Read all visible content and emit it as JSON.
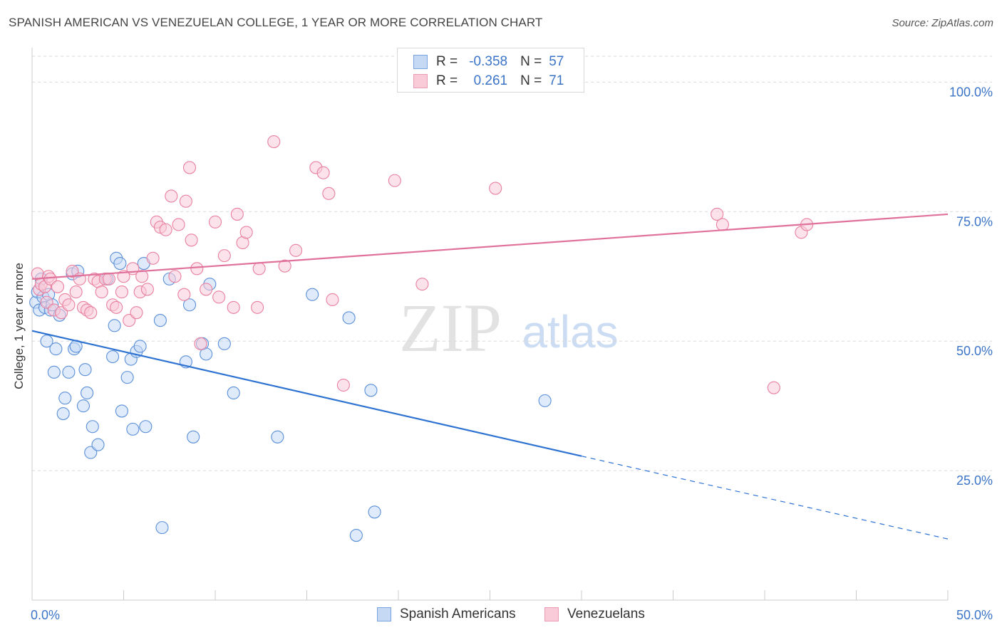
{
  "title": "SPANISH AMERICAN VS VENEZUELAN COLLEGE, 1 YEAR OR MORE CORRELATION CHART",
  "source": "Source: ZipAtlas.com",
  "watermark": {
    "zip": "ZIP",
    "atlas": "atlas"
  },
  "stats": [
    {
      "r_label": "R =",
      "r_value": "-0.358",
      "n_label": "N =",
      "n_value": "57",
      "fill": "#c5d9f5",
      "stroke": "#7aa3e0"
    },
    {
      "r_label": "R =",
      "r_value": "0.261",
      "n_label": "N =",
      "n_value": "71",
      "fill": "#f9cad8",
      "stroke": "#ec9bb4"
    }
  ],
  "legend": [
    {
      "label": "Spanish Americans",
      "fill": "#c5d9f5",
      "stroke": "#7aa3e0"
    },
    {
      "label": "Venezuelans",
      "fill": "#f9cad8",
      "stroke": "#ec9bb4"
    }
  ],
  "chart_data": {
    "type": "scatter",
    "ylabel": "College, 1 year or more",
    "xlim": [
      0,
      50
    ],
    "ylim": [
      0,
      105
    ],
    "x_tick_labels": [
      {
        "value": 0,
        "label": "0.0%"
      },
      {
        "value": 50,
        "label": "50.0%"
      }
    ],
    "y_tick_labels": [
      {
        "value": 100,
        "label": "100.0%"
      },
      {
        "value": 75,
        "label": "75.0%"
      },
      {
        "value": 50,
        "label": "50.0%"
      },
      {
        "value": 25,
        "label": "25.0%"
      }
    ],
    "grid": "horizontal dashed",
    "series": [
      {
        "name": "Spanish Americans",
        "color": "#5a8fd8",
        "fill": "#c5d9f5",
        "line_color": "#2e72d2",
        "trend": {
          "x0": 0,
          "y0": 52.0,
          "x1": 30,
          "y1": 27.8,
          "dash_to_x": 50,
          "dash_to_y": 11.8
        },
        "points": [
          [
            0.2,
            57.5
          ],
          [
            0.3,
            59.5
          ],
          [
            0.4,
            56.0
          ],
          [
            0.5,
            62.0
          ],
          [
            0.6,
            58.5
          ],
          [
            0.7,
            56.5
          ],
          [
            0.8,
            50.0
          ],
          [
            0.9,
            59.0
          ],
          [
            1.0,
            56.0
          ],
          [
            1.2,
            44.0
          ],
          [
            1.3,
            48.5
          ],
          [
            1.5,
            55.0
          ],
          [
            1.7,
            36.0
          ],
          [
            1.8,
            39.0
          ],
          [
            2.0,
            44.0
          ],
          [
            2.2,
            63.0
          ],
          [
            2.3,
            48.5
          ],
          [
            2.4,
            49.0
          ],
          [
            2.8,
            37.5
          ],
          [
            2.9,
            44.5
          ],
          [
            3.0,
            40.0
          ],
          [
            3.2,
            28.5
          ],
          [
            3.3,
            33.5
          ],
          [
            3.6,
            30.0
          ],
          [
            4.1,
            62.0
          ],
          [
            4.4,
            47.0
          ],
          [
            4.5,
            53.0
          ],
          [
            4.6,
            66.0
          ],
          [
            4.8,
            65.0
          ],
          [
            4.9,
            36.5
          ],
          [
            5.2,
            43.0
          ],
          [
            5.4,
            46.5
          ],
          [
            5.5,
            33.0
          ],
          [
            5.7,
            48.0
          ],
          [
            5.9,
            49.0
          ],
          [
            6.1,
            65.0
          ],
          [
            6.2,
            33.5
          ],
          [
            7.0,
            54.0
          ],
          [
            7.1,
            14.0
          ],
          [
            7.5,
            62.0
          ],
          [
            8.4,
            46.0
          ],
          [
            8.6,
            57.0
          ],
          [
            8.8,
            31.5
          ],
          [
            9.3,
            49.5
          ],
          [
            9.5,
            47.5
          ],
          [
            9.7,
            61.0
          ],
          [
            10.5,
            49.5
          ],
          [
            11.0,
            40.0
          ],
          [
            13.4,
            31.5
          ],
          [
            15.3,
            59.0
          ],
          [
            17.3,
            54.5
          ],
          [
            17.7,
            12.5
          ],
          [
            18.5,
            40.5
          ],
          [
            18.7,
            17.0
          ],
          [
            28.0,
            38.5
          ],
          [
            2.5,
            63.5
          ],
          [
            1.1,
            57.0
          ]
        ]
      },
      {
        "name": "Venezuelans",
        "color": "#e8809f",
        "fill": "#f9cad8",
        "line_color": "#e0719a",
        "trend": {
          "x0": 0,
          "y0": 62.0,
          "x1": 50,
          "y1": 74.5
        },
        "points": [
          [
            0.3,
            63.0
          ],
          [
            0.4,
            60.0
          ],
          [
            0.5,
            61.0
          ],
          [
            0.7,
            60.5
          ],
          [
            0.8,
            57.5
          ],
          [
            0.9,
            62.5
          ],
          [
            1.0,
            62.0
          ],
          [
            1.2,
            56.0
          ],
          [
            1.4,
            60.5
          ],
          [
            1.6,
            55.5
          ],
          [
            1.8,
            58.0
          ],
          [
            2.0,
            57.0
          ],
          [
            2.2,
            63.5
          ],
          [
            2.4,
            59.5
          ],
          [
            2.6,
            62.0
          ],
          [
            2.8,
            56.5
          ],
          [
            3.0,
            56.0
          ],
          [
            3.2,
            55.5
          ],
          [
            3.4,
            62.0
          ],
          [
            3.6,
            61.5
          ],
          [
            3.8,
            59.5
          ],
          [
            4.0,
            62.0
          ],
          [
            4.2,
            62.0
          ],
          [
            4.4,
            57.0
          ],
          [
            4.6,
            56.5
          ],
          [
            4.9,
            59.5
          ],
          [
            5.0,
            62.5
          ],
          [
            5.3,
            54.0
          ],
          [
            5.5,
            64.0
          ],
          [
            5.7,
            55.5
          ],
          [
            5.9,
            59.5
          ],
          [
            6.0,
            62.5
          ],
          [
            6.3,
            60.0
          ],
          [
            6.6,
            66.0
          ],
          [
            6.8,
            73.0
          ],
          [
            7.0,
            72.0
          ],
          [
            7.3,
            71.5
          ],
          [
            7.6,
            78.0
          ],
          [
            7.8,
            62.5
          ],
          [
            8.0,
            72.5
          ],
          [
            8.3,
            59.0
          ],
          [
            8.4,
            77.0
          ],
          [
            8.6,
            83.5
          ],
          [
            8.7,
            69.5
          ],
          [
            9.0,
            64.0
          ],
          [
            9.2,
            49.5
          ],
          [
            9.5,
            60.0
          ],
          [
            10.0,
            73.0
          ],
          [
            10.2,
            58.5
          ],
          [
            10.5,
            66.5
          ],
          [
            11.0,
            56.5
          ],
          [
            11.2,
            74.5
          ],
          [
            11.5,
            69.0
          ],
          [
            11.7,
            71.0
          ],
          [
            12.3,
            56.5
          ],
          [
            12.4,
            64.0
          ],
          [
            13.2,
            88.5
          ],
          [
            13.8,
            64.5
          ],
          [
            14.4,
            67.5
          ],
          [
            15.5,
            83.5
          ],
          [
            15.9,
            82.5
          ],
          [
            16.2,
            78.5
          ],
          [
            16.4,
            58.0
          ],
          [
            17.0,
            41.5
          ],
          [
            19.8,
            81.0
          ],
          [
            21.3,
            61.0
          ],
          [
            25.3,
            79.5
          ],
          [
            37.4,
            74.5
          ],
          [
            37.7,
            72.5
          ],
          [
            40.5,
            41.0
          ],
          [
            42.0,
            71.0
          ],
          [
            42.3,
            72.5
          ]
        ]
      }
    ]
  }
}
